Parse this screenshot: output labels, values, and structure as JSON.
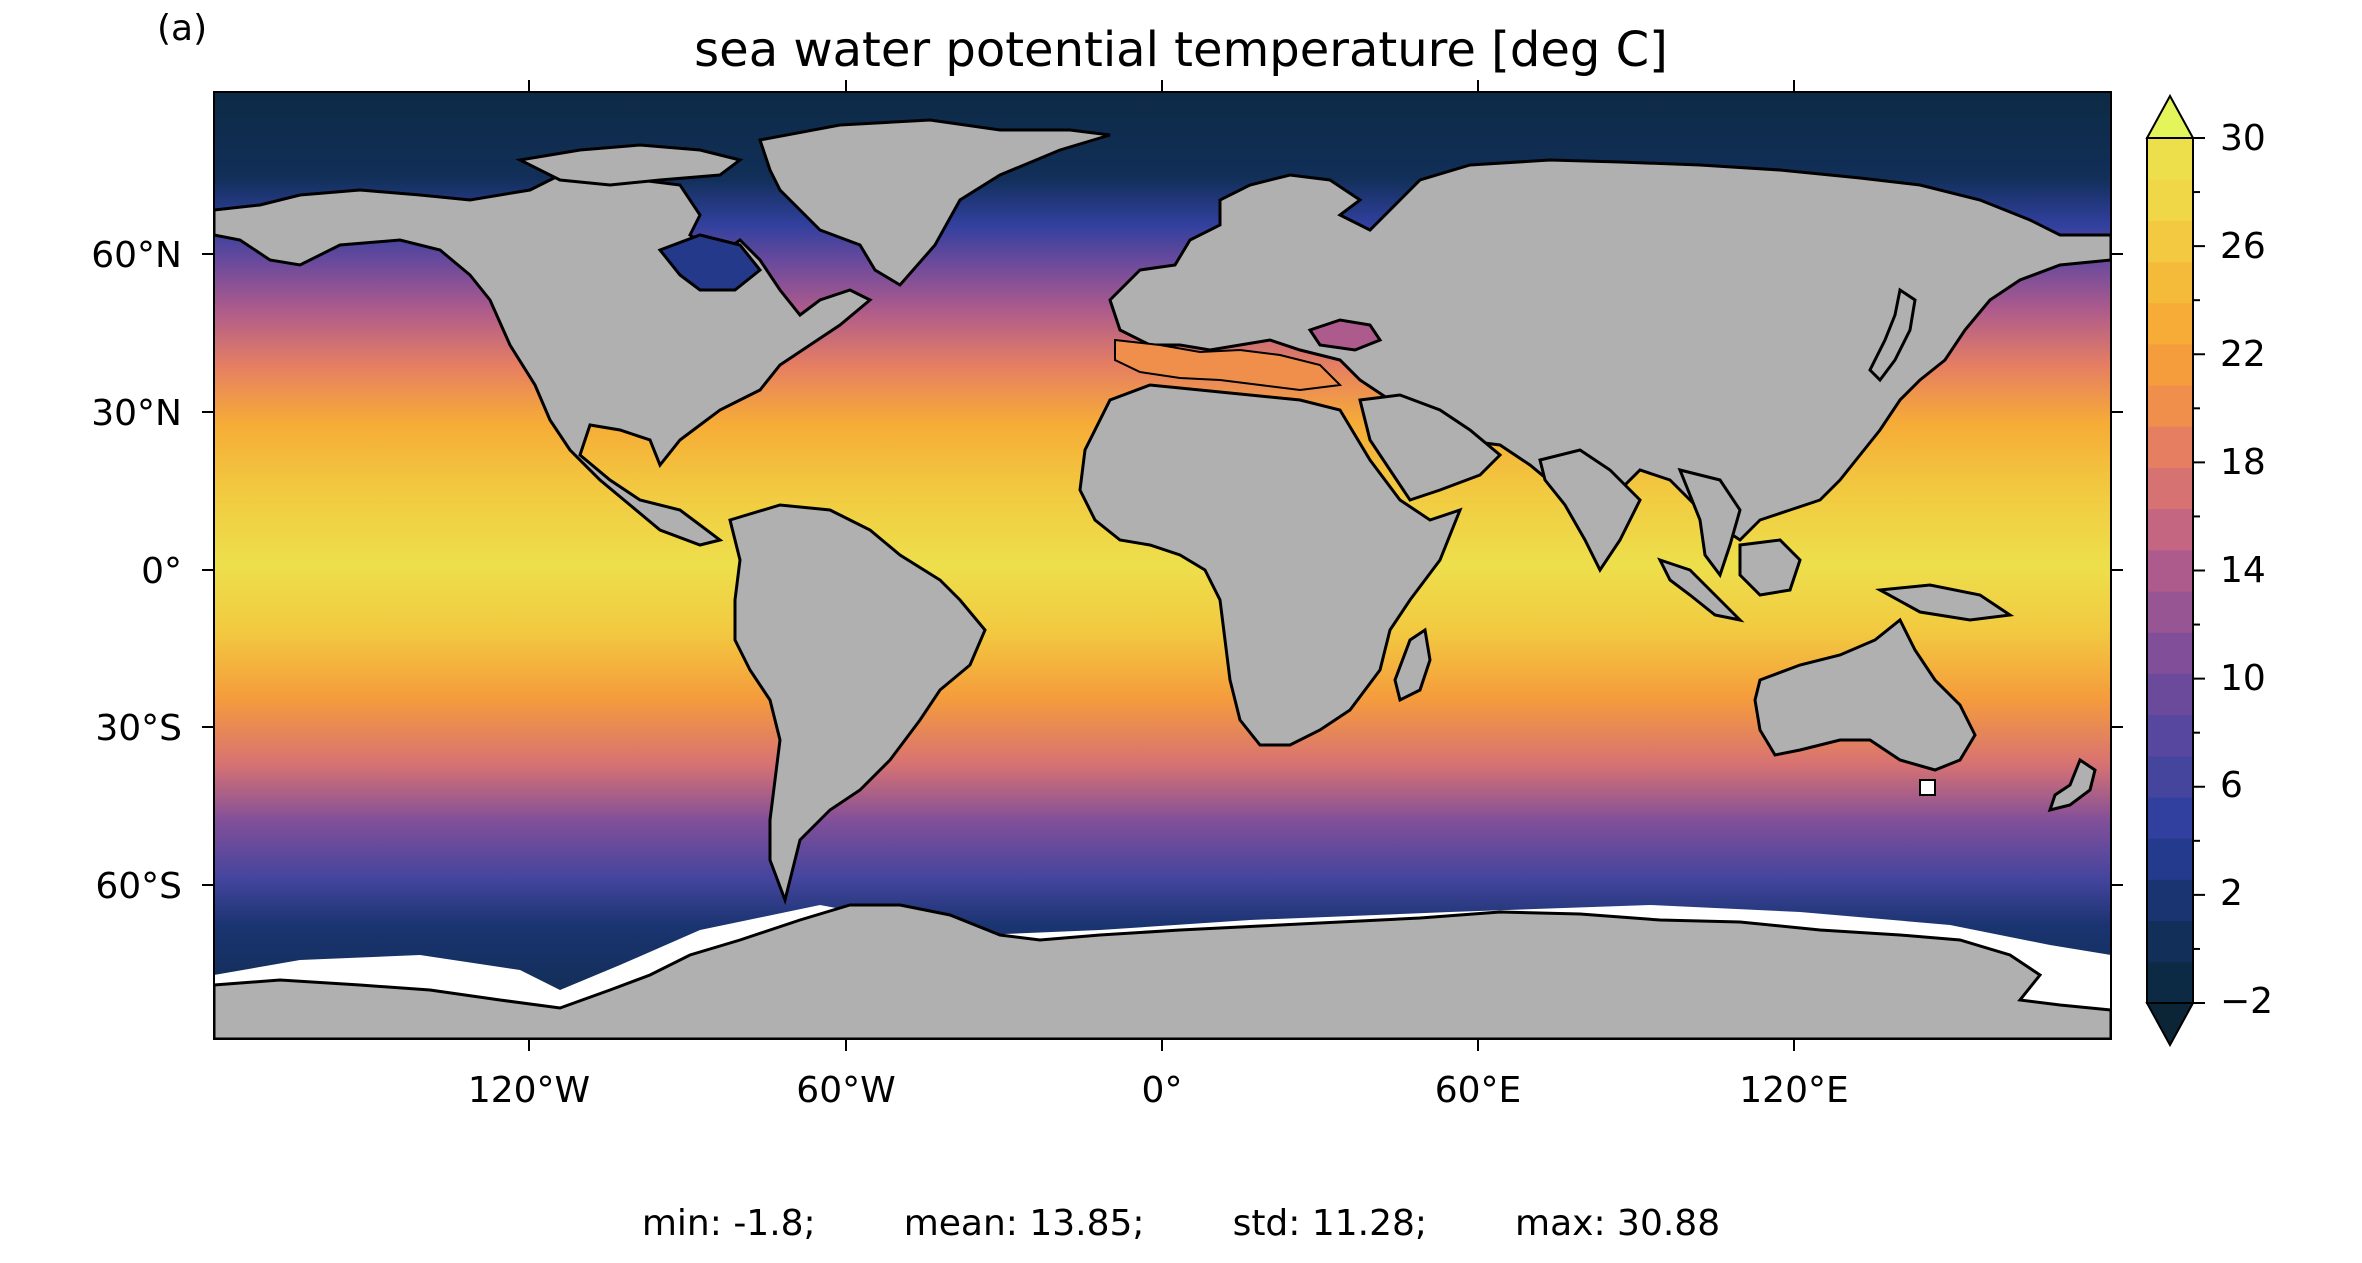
{
  "panel_label": "(a)",
  "title": "sea water potential temperature [deg C]",
  "lat_ticks": [
    "60°N",
    "30°N",
    "0°",
    "30°S",
    "60°S"
  ],
  "lon_ticks": [
    "120°W",
    "60°W",
    "0°",
    "60°E",
    "120°E"
  ],
  "colorbar": {
    "ticks": [
      "30",
      "26",
      "22",
      "18",
      "14",
      "10",
      "6",
      "2",
      "−2"
    ],
    "min": -2,
    "max": 30,
    "step": 2,
    "extend": "both",
    "colors": [
      "#0d2a45",
      "#112f58",
      "#1a3471",
      "#243a8c",
      "#31409e",
      "#45459e",
      "#57479e",
      "#6b4a9c",
      "#814f99",
      "#975594",
      "#ad5b8c",
      "#c46682",
      "#d77273",
      "#e67f62",
      "#f08e4c",
      "#f59c3c",
      "#f6ac37",
      "#f4bb3a",
      "#f2c940",
      "#f0d748",
      "#eddf4c"
    ],
    "cap_low": "#0b2537",
    "cap_high": "#e3f55a"
  },
  "stats": {
    "min": "min: -1.8;",
    "mean": "mean: 13.85;",
    "std": "std: 11.28;",
    "max": "max: 30.88"
  },
  "map_colors": {
    "land": "#b0b0b0",
    "coast": "#000000",
    "ice": "#ffffff"
  }
}
